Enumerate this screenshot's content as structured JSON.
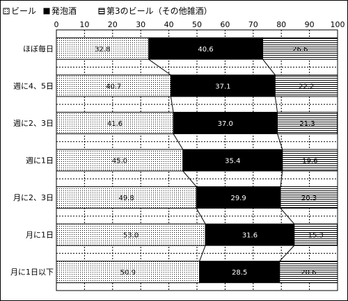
{
  "chart_data": {
    "type": "bar",
    "orientation": "horizontal",
    "stacked": true,
    "percent": true,
    "categories": [
      "ほぼ毎日",
      "週に4、5日",
      "週に2、3日",
      "週に1日",
      "月に2、3日",
      "月に1日",
      "月に1日以下"
    ],
    "series": [
      {
        "name": "ビール",
        "values": [
          32.8,
          40.7,
          41.6,
          45.0,
          49.8,
          53.0,
          50.9
        ],
        "pattern": "dots"
      },
      {
        "name": "発泡酒",
        "values": [
          40.6,
          37.1,
          37.0,
          35.4,
          29.9,
          31.6,
          28.5
        ],
        "pattern": "solid-black"
      },
      {
        "name": "第3のビール（その他雑酒）",
        "values": [
          26.6,
          22.2,
          21.3,
          19.6,
          20.3,
          15.3,
          20.6
        ],
        "pattern": "hlines"
      }
    ],
    "value_labels": [
      [
        "32.8",
        "40.6",
        "26.6"
      ],
      [
        "40.7",
        "37.1",
        "22.2"
      ],
      [
        "41.6",
        "37.0",
        "21.3"
      ],
      [
        "45.0",
        "35.4",
        "19.6"
      ],
      [
        "49.8",
        "29.9",
        "20.3"
      ],
      [
        "53.0",
        "31.6",
        "15.3"
      ],
      [
        "50.9",
        "28.5",
        "20.6"
      ]
    ],
    "x_ticks": [
      "0",
      "10",
      "20",
      "30",
      "40",
      "50",
      "60",
      "70",
      "80",
      "90",
      "100"
    ],
    "xlim": [
      0,
      100
    ],
    "legend_position": "top-left",
    "series_lines": true,
    "grid": true,
    "colors": {
      "solid": "#000000",
      "background": "#ffffff",
      "line": "#000000"
    }
  }
}
